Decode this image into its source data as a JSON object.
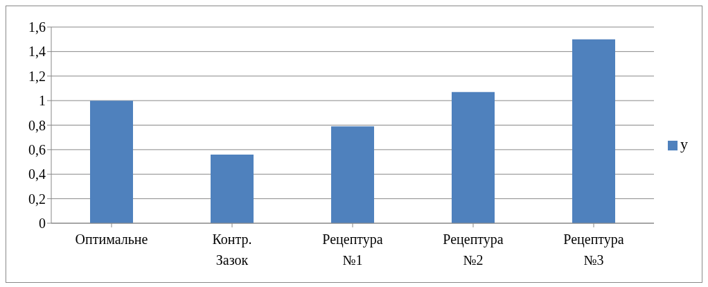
{
  "chart_data": {
    "type": "bar",
    "categories": [
      "Оптимальне",
      "Контр. Зазок",
      "Рецептура №1",
      "Рецептура №2",
      "Рецептура №3"
    ],
    "series": [
      {
        "name": "y",
        "color": "#4f81bd",
        "values": [
          1.0,
          0.56,
          0.79,
          1.07,
          1.5
        ]
      }
    ],
    "ylim": [
      0,
      1.6
    ],
    "yticks": [
      {
        "value": 0,
        "label": "0"
      },
      {
        "value": 0.2,
        "label": "0,2"
      },
      {
        "value": 0.4,
        "label": "0,4"
      },
      {
        "value": 0.6,
        "label": "0,6"
      },
      {
        "value": 0.8,
        "label": "0,8"
      },
      {
        "value": 1,
        "label": "1"
      },
      {
        "value": 1.2,
        "label": "1,2"
      },
      {
        "value": 1.4,
        "label": "1,4"
      },
      {
        "value": 1.6,
        "label": "1,6"
      }
    ],
    "grid": "y",
    "legend": "right"
  }
}
